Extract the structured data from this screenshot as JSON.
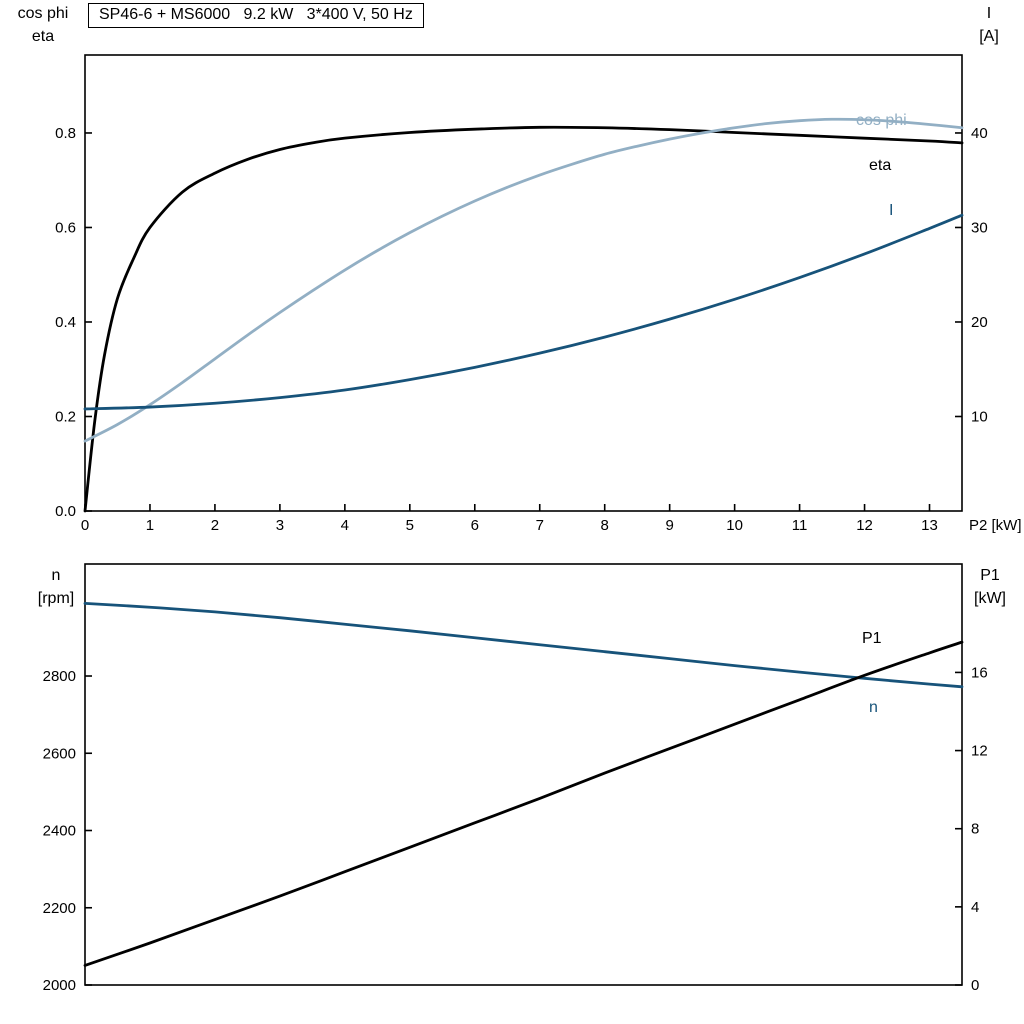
{
  "title": "SP46-6 + MS6000   9.2 kW   3*400 V, 50 Hz",
  "colors": {
    "black": "#000000",
    "light_blue": "#92afc4",
    "dark_blue": "#17537a"
  },
  "chart_data": {
    "see": "charts"
  },
  "charts": [
    {
      "type": "line",
      "x_axis": {
        "label": "P2 [kW]",
        "lim": [
          0,
          13.5
        ],
        "ticks": [
          0,
          1,
          2,
          3,
          4,
          5,
          6,
          7,
          8,
          9,
          10,
          11,
          12,
          13
        ],
        "decimals": 0,
        "show_labels": true
      },
      "left_axis": {
        "title_lines": [
          "cos phi",
          "eta"
        ],
        "lim": [
          0,
          0.965
        ],
        "ticks": [
          0.0,
          0.2,
          0.4,
          0.6,
          0.8
        ],
        "decimals": 1
      },
      "right_axis": {
        "title_lines": [
          "I",
          "[A]"
        ],
        "lim": [
          0,
          48.25
        ],
        "ticks": [
          10,
          20,
          30,
          40
        ],
        "decimals": 0
      },
      "series": [
        {
          "id": "eta",
          "label": "eta",
          "axis": "left",
          "color": "#000000",
          "label_pos": [
            869,
            170
          ],
          "points": [
            [
              0,
              0
            ],
            [
              0.15,
              0.19
            ],
            [
              0.3,
              0.33
            ],
            [
              0.5,
              0.45
            ],
            [
              0.75,
              0.535
            ],
            [
              1,
              0.6
            ],
            [
              1.5,
              0.675
            ],
            [
              2,
              0.715
            ],
            [
              2.5,
              0.744
            ],
            [
              3,
              0.765
            ],
            [
              3.5,
              0.779
            ],
            [
              4,
              0.789
            ],
            [
              5,
              0.801
            ],
            [
              6,
              0.808
            ],
            [
              7,
              0.812
            ],
            [
              8,
              0.811
            ],
            [
              9,
              0.807
            ],
            [
              10,
              0.801
            ],
            [
              11,
              0.795
            ],
            [
              12,
              0.789
            ],
            [
              13,
              0.783
            ],
            [
              13.5,
              0.779
            ]
          ]
        },
        {
          "id": "cos-phi",
          "label": "cos phi",
          "axis": "left",
          "color": "#92afc4",
          "label_pos": [
            856,
            125
          ],
          "points": [
            [
              0,
              0.148
            ],
            [
              0.5,
              0.183
            ],
            [
              1,
              0.225
            ],
            [
              1.5,
              0.272
            ],
            [
              2,
              0.322
            ],
            [
              2.5,
              0.372
            ],
            [
              3,
              0.42
            ],
            [
              3.5,
              0.466
            ],
            [
              4,
              0.51
            ],
            [
              4.5,
              0.551
            ],
            [
              5,
              0.589
            ],
            [
              5.5,
              0.624
            ],
            [
              6,
              0.656
            ],
            [
              6.5,
              0.685
            ],
            [
              7,
              0.711
            ],
            [
              7.5,
              0.734
            ],
            [
              8,
              0.755
            ],
            [
              8.5,
              0.772
            ],
            [
              9,
              0.787
            ],
            [
              9.5,
              0.8
            ],
            [
              10,
              0.811
            ],
            [
              10.5,
              0.82
            ],
            [
              11,
              0.826
            ],
            [
              11.5,
              0.829
            ],
            [
              12,
              0.828
            ],
            [
              12.5,
              0.824
            ],
            [
              13,
              0.818
            ],
            [
              13.5,
              0.811
            ]
          ]
        },
        {
          "id": "current",
          "label": "I",
          "axis": "right",
          "color": "#17537a",
          "label_pos": [
            889,
            215
          ],
          "points": [
            [
              0,
              10.8
            ],
            [
              1,
              11.0
            ],
            [
              2,
              11.4
            ],
            [
              3,
              12.0
            ],
            [
              4,
              12.8
            ],
            [
              5,
              13.9
            ],
            [
              6,
              15.2
            ],
            [
              7,
              16.7
            ],
            [
              8,
              18.4
            ],
            [
              9,
              20.3
            ],
            [
              10,
              22.4
            ],
            [
              11,
              24.7
            ],
            [
              12,
              27.2
            ],
            [
              13,
              29.9
            ],
            [
              13.5,
              31.3
            ]
          ]
        }
      ]
    },
    {
      "type": "line",
      "x_axis": {
        "label": "",
        "lim": [
          0,
          13.5
        ],
        "ticks": [],
        "decimals": 0,
        "show_labels": false
      },
      "left_axis": {
        "title_lines": [
          "n",
          "[rpm]"
        ],
        "lim": [
          2000,
          3090
        ],
        "ticks": [
          2000,
          2200,
          2400,
          2600,
          2800
        ],
        "decimals": 0
      },
      "right_axis": {
        "title_lines": [
          "P1",
          "[kW]"
        ],
        "lim": [
          0,
          21.55
        ],
        "ticks": [
          0,
          4,
          8,
          12,
          16
        ],
        "decimals": 0
      },
      "series": [
        {
          "id": "speed",
          "label": "n",
          "axis": "left",
          "color": "#17537a",
          "label_pos": [
            869,
            712
          ],
          "points": [
            [
              0,
              2988
            ],
            [
              1,
              2978
            ],
            [
              2,
              2966
            ],
            [
              3,
              2951
            ],
            [
              4,
              2934
            ],
            [
              5,
              2917
            ],
            [
              6,
              2899
            ],
            [
              7,
              2881
            ],
            [
              8,
              2863
            ],
            [
              9,
              2845
            ],
            [
              10,
              2827
            ],
            [
              11,
              2810
            ],
            [
              12,
              2794
            ],
            [
              13,
              2779
            ],
            [
              13.5,
              2772
            ]
          ]
        },
        {
          "id": "p1",
          "label": "P1",
          "axis": "right",
          "color": "#000000",
          "label_pos": [
            862,
            643
          ],
          "points": [
            [
              0,
              1.0
            ],
            [
              1,
              2.15
            ],
            [
              2,
              3.35
            ],
            [
              3,
              4.55
            ],
            [
              4,
              5.8
            ],
            [
              5,
              7.05
            ],
            [
              6,
              8.3
            ],
            [
              7,
              9.55
            ],
            [
              8,
              10.85
            ],
            [
              9,
              12.1
            ],
            [
              10,
              13.35
            ],
            [
              11,
              14.6
            ],
            [
              12,
              15.85
            ],
            [
              13,
              17.0
            ],
            [
              13.5,
              17.55
            ]
          ]
        }
      ]
    }
  ]
}
